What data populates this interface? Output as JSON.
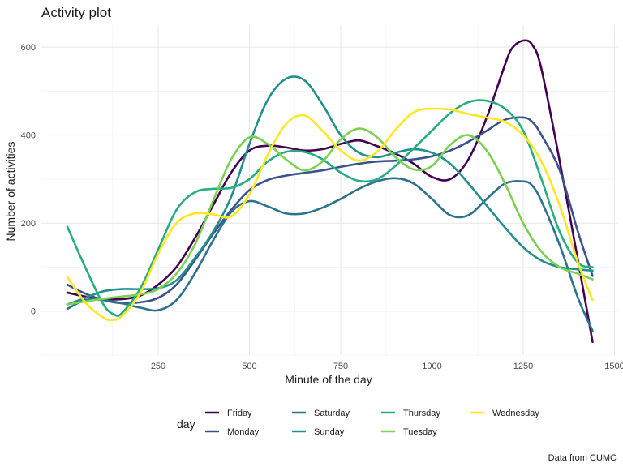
{
  "chart_data": {
    "type": "line",
    "title": "Activity plot",
    "xlabel": "Minute of the day",
    "ylabel": "Number of activities",
    "caption": "Data from CUMC",
    "legend_title": "day",
    "legend_position": "bottom",
    "grid": true,
    "xlim": [
      -70,
      1510
    ],
    "ylim": [
      -100,
      650
    ],
    "xticks": [
      250,
      500,
      750,
      1000,
      1250,
      1500
    ],
    "yticks": [
      0,
      200,
      400,
      600
    ],
    "series": [
      {
        "name": "Friday",
        "color": "#440154",
        "x": [
          1,
          50,
          100,
          150,
          200,
          250,
          300,
          350,
          400,
          450,
          500,
          550,
          600,
          650,
          700,
          750,
          800,
          850,
          900,
          950,
          1000,
          1050,
          1100,
          1150,
          1200,
          1220,
          1250,
          1275,
          1300,
          1350,
          1400,
          1440
        ],
        "y": [
          42,
          33,
          28,
          27,
          35,
          60,
          100,
          165,
          240,
          315,
          365,
          376,
          372,
          365,
          368,
          380,
          388,
          375,
          358,
          335,
          305,
          300,
          345,
          440,
          560,
          598,
          615,
          605,
          550,
          340,
          115,
          -70
        ]
      },
      {
        "name": "Monday",
        "color": "#3b528b",
        "x": [
          1,
          50,
          100,
          150,
          200,
          250,
          300,
          350,
          400,
          450,
          500,
          550,
          600,
          650,
          700,
          750,
          800,
          850,
          900,
          950,
          1000,
          1050,
          1100,
          1150,
          1200,
          1250,
          1275,
          1300,
          1350,
          1400,
          1440
        ],
        "y": [
          60,
          40,
          25,
          18,
          20,
          30,
          60,
          115,
          175,
          230,
          275,
          298,
          308,
          314,
          320,
          328,
          335,
          340,
          342,
          345,
          352,
          365,
          385,
          410,
          435,
          440,
          430,
          400,
          320,
          180,
          80
        ]
      },
      {
        "name": "Saturday",
        "color": "#2c728e",
        "x": [
          1,
          50,
          100,
          150,
          200,
          250,
          300,
          350,
          400,
          450,
          500,
          550,
          600,
          650,
          700,
          750,
          800,
          850,
          900,
          950,
          1000,
          1050,
          1100,
          1150,
          1200,
          1250,
          1275,
          1300,
          1350,
          1400,
          1440
        ],
        "y": [
          5,
          25,
          25,
          18,
          8,
          2,
          25,
          85,
          160,
          225,
          250,
          238,
          222,
          222,
          235,
          255,
          278,
          295,
          302,
          290,
          255,
          218,
          218,
          255,
          290,
          295,
          285,
          250,
          150,
          30,
          -45
        ]
      },
      {
        "name": "Sunday",
        "color": "#21908d",
        "x": [
          1,
          50,
          100,
          150,
          200,
          250,
          300,
          350,
          400,
          450,
          500,
          550,
          600,
          650,
          700,
          750,
          800,
          850,
          900,
          950,
          1000,
          1050,
          1100,
          1150,
          1200,
          1250,
          1300,
          1350,
          1400,
          1440
        ],
        "y": [
          15,
          30,
          45,
          50,
          50,
          52,
          70,
          120,
          180,
          260,
          380,
          480,
          528,
          525,
          470,
          400,
          360,
          350,
          360,
          368,
          360,
          335,
          290,
          240,
          190,
          145,
          115,
          100,
          95,
          92
        ]
      },
      {
        "name": "Thursday",
        "color": "#27ad81",
        "x": [
          1,
          50,
          100,
          130,
          150,
          200,
          250,
          300,
          350,
          400,
          450,
          500,
          550,
          600,
          650,
          700,
          750,
          800,
          850,
          900,
          950,
          1000,
          1050,
          1100,
          1150,
          1200,
          1250,
          1300,
          1350,
          1400,
          1440
        ],
        "y": [
          192,
          100,
          15,
          -8,
          -5,
          50,
          140,
          230,
          270,
          278,
          280,
          300,
          340,
          362,
          362,
          345,
          315,
          296,
          300,
          330,
          370,
          410,
          450,
          475,
          478,
          460,
          410,
          300,
          180,
          110,
          100
        ]
      },
      {
        "name": "Tuesday",
        "color": "#7ad151",
        "x": [
          1,
          50,
          100,
          150,
          200,
          250,
          300,
          350,
          400,
          450,
          500,
          550,
          600,
          650,
          700,
          750,
          800,
          850,
          900,
          950,
          1000,
          1050,
          1100,
          1150,
          1200,
          1250,
          1300,
          1350,
          1400,
          1440
        ],
        "y": [
          15,
          22,
          28,
          33,
          38,
          50,
          85,
          150,
          250,
          345,
          395,
          380,
          345,
          320,
          340,
          390,
          415,
          395,
          350,
          322,
          330,
          378,
          400,
          365,
          290,
          200,
          135,
          100,
          85,
          72
        ]
      },
      {
        "name": "Wednesday",
        "color": "#fde725",
        "x": [
          1,
          50,
          100,
          125,
          150,
          200,
          250,
          300,
          350,
          400,
          450,
          500,
          550,
          600,
          650,
          700,
          750,
          800,
          850,
          900,
          950,
          1000,
          1050,
          1100,
          1150,
          1200,
          1250,
          1300,
          1350,
          1400,
          1440
        ],
        "y": [
          78,
          20,
          -15,
          -20,
          -12,
          40,
          130,
          200,
          222,
          220,
          215,
          265,
          355,
          425,
          445,
          410,
          365,
          342,
          362,
          412,
          452,
          460,
          458,
          448,
          440,
          430,
          400,
          340,
          240,
          110,
          25
        ]
      }
    ]
  }
}
